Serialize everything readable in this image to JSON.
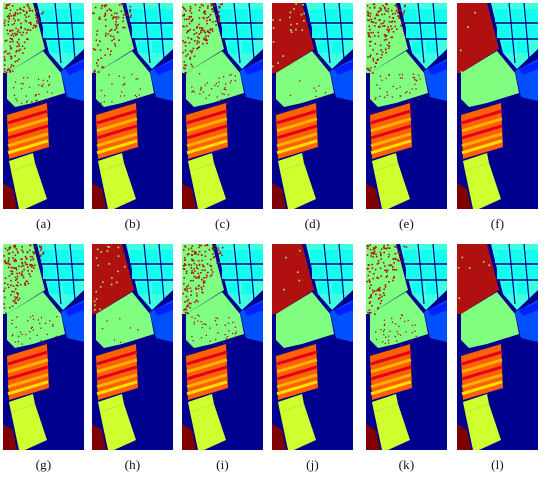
{
  "figure": {
    "panels": [
      {
        "label": "(a)",
        "noise": "heavy"
      },
      {
        "label": "(b)",
        "noise": "medium"
      },
      {
        "label": "(c)",
        "noise": "heavy"
      },
      {
        "label": "(d)",
        "noise": "light"
      },
      {
        "label": "(e)",
        "noise": "heavy"
      },
      {
        "label": "(f)",
        "noise": "clean"
      },
      {
        "label": "(g)",
        "noise": "heavy"
      },
      {
        "label": "(h)",
        "noise": "light"
      },
      {
        "label": "(i)",
        "noise": "heavy"
      },
      {
        "label": "(j)",
        "noise": "clean"
      },
      {
        "label": "(k)",
        "noise": "heavy"
      },
      {
        "label": "(l)",
        "noise": "clean"
      }
    ],
    "colors": {
      "background": "#00008f",
      "green": "#80ff80",
      "red": "#b01010",
      "dark_red": "#800000",
      "cyan": "#10ffef",
      "cyan_light": "#40ffe0",
      "sky": "#00c8ff",
      "blue": "#0050ff",
      "bright_blue": "#0020ff",
      "orange": "#ff6000",
      "amber": "#ffb000",
      "yellow": "#ffe000",
      "yellow_green": "#d0ff30",
      "crimson": "#e00020",
      "navy": "#00008f"
    }
  }
}
